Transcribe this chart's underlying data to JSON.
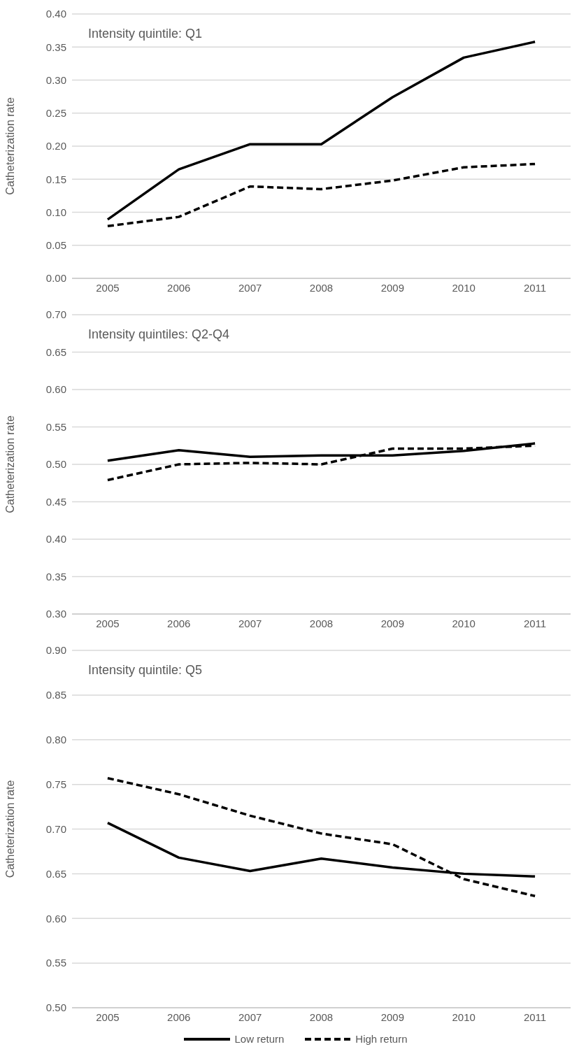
{
  "chart_data": [
    {
      "type": "line",
      "title": "Intensity quintile: Q1",
      "ylabel": "Catheterization rate",
      "categories": [
        "2005",
        "2006",
        "2007",
        "2008",
        "2009",
        "2010",
        "2011"
      ],
      "ylim": [
        0,
        0.4
      ],
      "yticks": [
        {
          "value": 0,
          "label": "0.00"
        },
        {
          "value": 0.05,
          "label": "0.05"
        },
        {
          "value": 0.1,
          "label": "0.10"
        },
        {
          "value": 0.15,
          "label": "0.15"
        },
        {
          "value": 0.2,
          "label": "0.20"
        },
        {
          "value": 0.25,
          "label": "0.25"
        },
        {
          "value": 0.3,
          "label": "0.30"
        },
        {
          "value": 0.35,
          "label": "0.35"
        },
        {
          "value": 0.4,
          "label": "0.40"
        }
      ],
      "grid": "y",
      "legend": false,
      "series": [
        {
          "color": "#000000",
          "line_style": "solid",
          "values": [
            0.089,
            0.165,
            0.203,
            0.203,
            0.274,
            0.334,
            0.358
          ]
        },
        {
          "color": "#000000",
          "line_style": "dashed",
          "values": [
            0.079,
            0.093,
            0.139,
            0.135,
            0.148,
            0.168,
            0.173
          ]
        }
      ]
    },
    {
      "type": "line",
      "title": "Intensity quintiles: Q2-Q4",
      "ylabel": "Catheterization rate",
      "categories": [
        "2005",
        "2006",
        "2007",
        "2008",
        "2009",
        "2010",
        "2011"
      ],
      "ylim": [
        0.3,
        0.7
      ],
      "yticks": [
        {
          "value": 0.3,
          "label": "0.30"
        },
        {
          "value": 0.35,
          "label": "0.35"
        },
        {
          "value": 0.4,
          "label": "0.40"
        },
        {
          "value": 0.45,
          "label": "0.45"
        },
        {
          "value": 0.5,
          "label": "0.50"
        },
        {
          "value": 0.55,
          "label": "0.55"
        },
        {
          "value": 0.6,
          "label": "0.60"
        },
        {
          "value": 0.65,
          "label": "0.65"
        },
        {
          "value": 0.7,
          "label": "0.70"
        }
      ],
      "grid": "y",
      "legend": false,
      "series": [
        {
          "color": "#000000",
          "line_style": "solid",
          "values": [
            0.505,
            0.519,
            0.51,
            0.512,
            0.512,
            0.518,
            0.528
          ]
        },
        {
          "color": "#000000",
          "line_style": "dashed",
          "values": [
            0.479,
            0.5,
            0.502,
            0.5,
            0.521,
            0.521,
            0.525
          ]
        }
      ]
    },
    {
      "type": "line",
      "title": "Intensity quintile: Q5",
      "ylabel": "Catheterization rate",
      "categories": [
        "2005",
        "2006",
        "2007",
        "2008",
        "2009",
        "2010",
        "2011"
      ],
      "ylim": [
        0.5,
        0.9
      ],
      "yticks": [
        {
          "value": 0.5,
          "label": "0.50"
        },
        {
          "value": 0.55,
          "label": "0.55"
        },
        {
          "value": 0.6,
          "label": "0.60"
        },
        {
          "value": 0.65,
          "label": "0.65"
        },
        {
          "value": 0.7,
          "label": "0.70"
        },
        {
          "value": 0.75,
          "label": "0.75"
        },
        {
          "value": 0.8,
          "label": "0.80"
        },
        {
          "value": 0.85,
          "label": "0.85"
        },
        {
          "value": 0.9,
          "label": "0.90"
        }
      ],
      "grid": "y",
      "legend": "bottom",
      "series": [
        {
          "name": "Low return",
          "color": "#000000",
          "line_style": "solid",
          "values": [
            0.707,
            0.668,
            0.653,
            0.667,
            0.657,
            0.65,
            0.647
          ]
        },
        {
          "name": "High return",
          "color": "#000000",
          "line_style": "dashed",
          "values": [
            0.757,
            0.739,
            0.715,
            0.695,
            0.683,
            0.644,
            0.625
          ]
        }
      ]
    }
  ]
}
